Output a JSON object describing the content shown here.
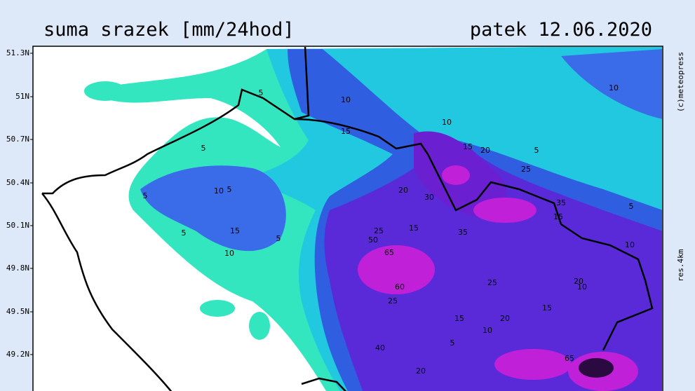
{
  "header": {
    "title": "suma srazek [mm/24hod]",
    "date": "patek 12.06.2020"
  },
  "side": {
    "credit": "(c)meteopress",
    "resolution": "res.4km"
  },
  "lat_labels": [
    "51.3N",
    "51N",
    "50.7N",
    "50.4N",
    "50.1N",
    "49.8N",
    "49.5N",
    "49.2N"
  ],
  "contour_labels": [
    5,
    10,
    15,
    5,
    5,
    10,
    5,
    5,
    15,
    10,
    5,
    10,
    25,
    15,
    20,
    5,
    25,
    20,
    30,
    35,
    15,
    10,
    5,
    10,
    25,
    15,
    35,
    50,
    65,
    60,
    25,
    15,
    20,
    15,
    20,
    10,
    5,
    40,
    20,
    65,
    10
  ]
}
